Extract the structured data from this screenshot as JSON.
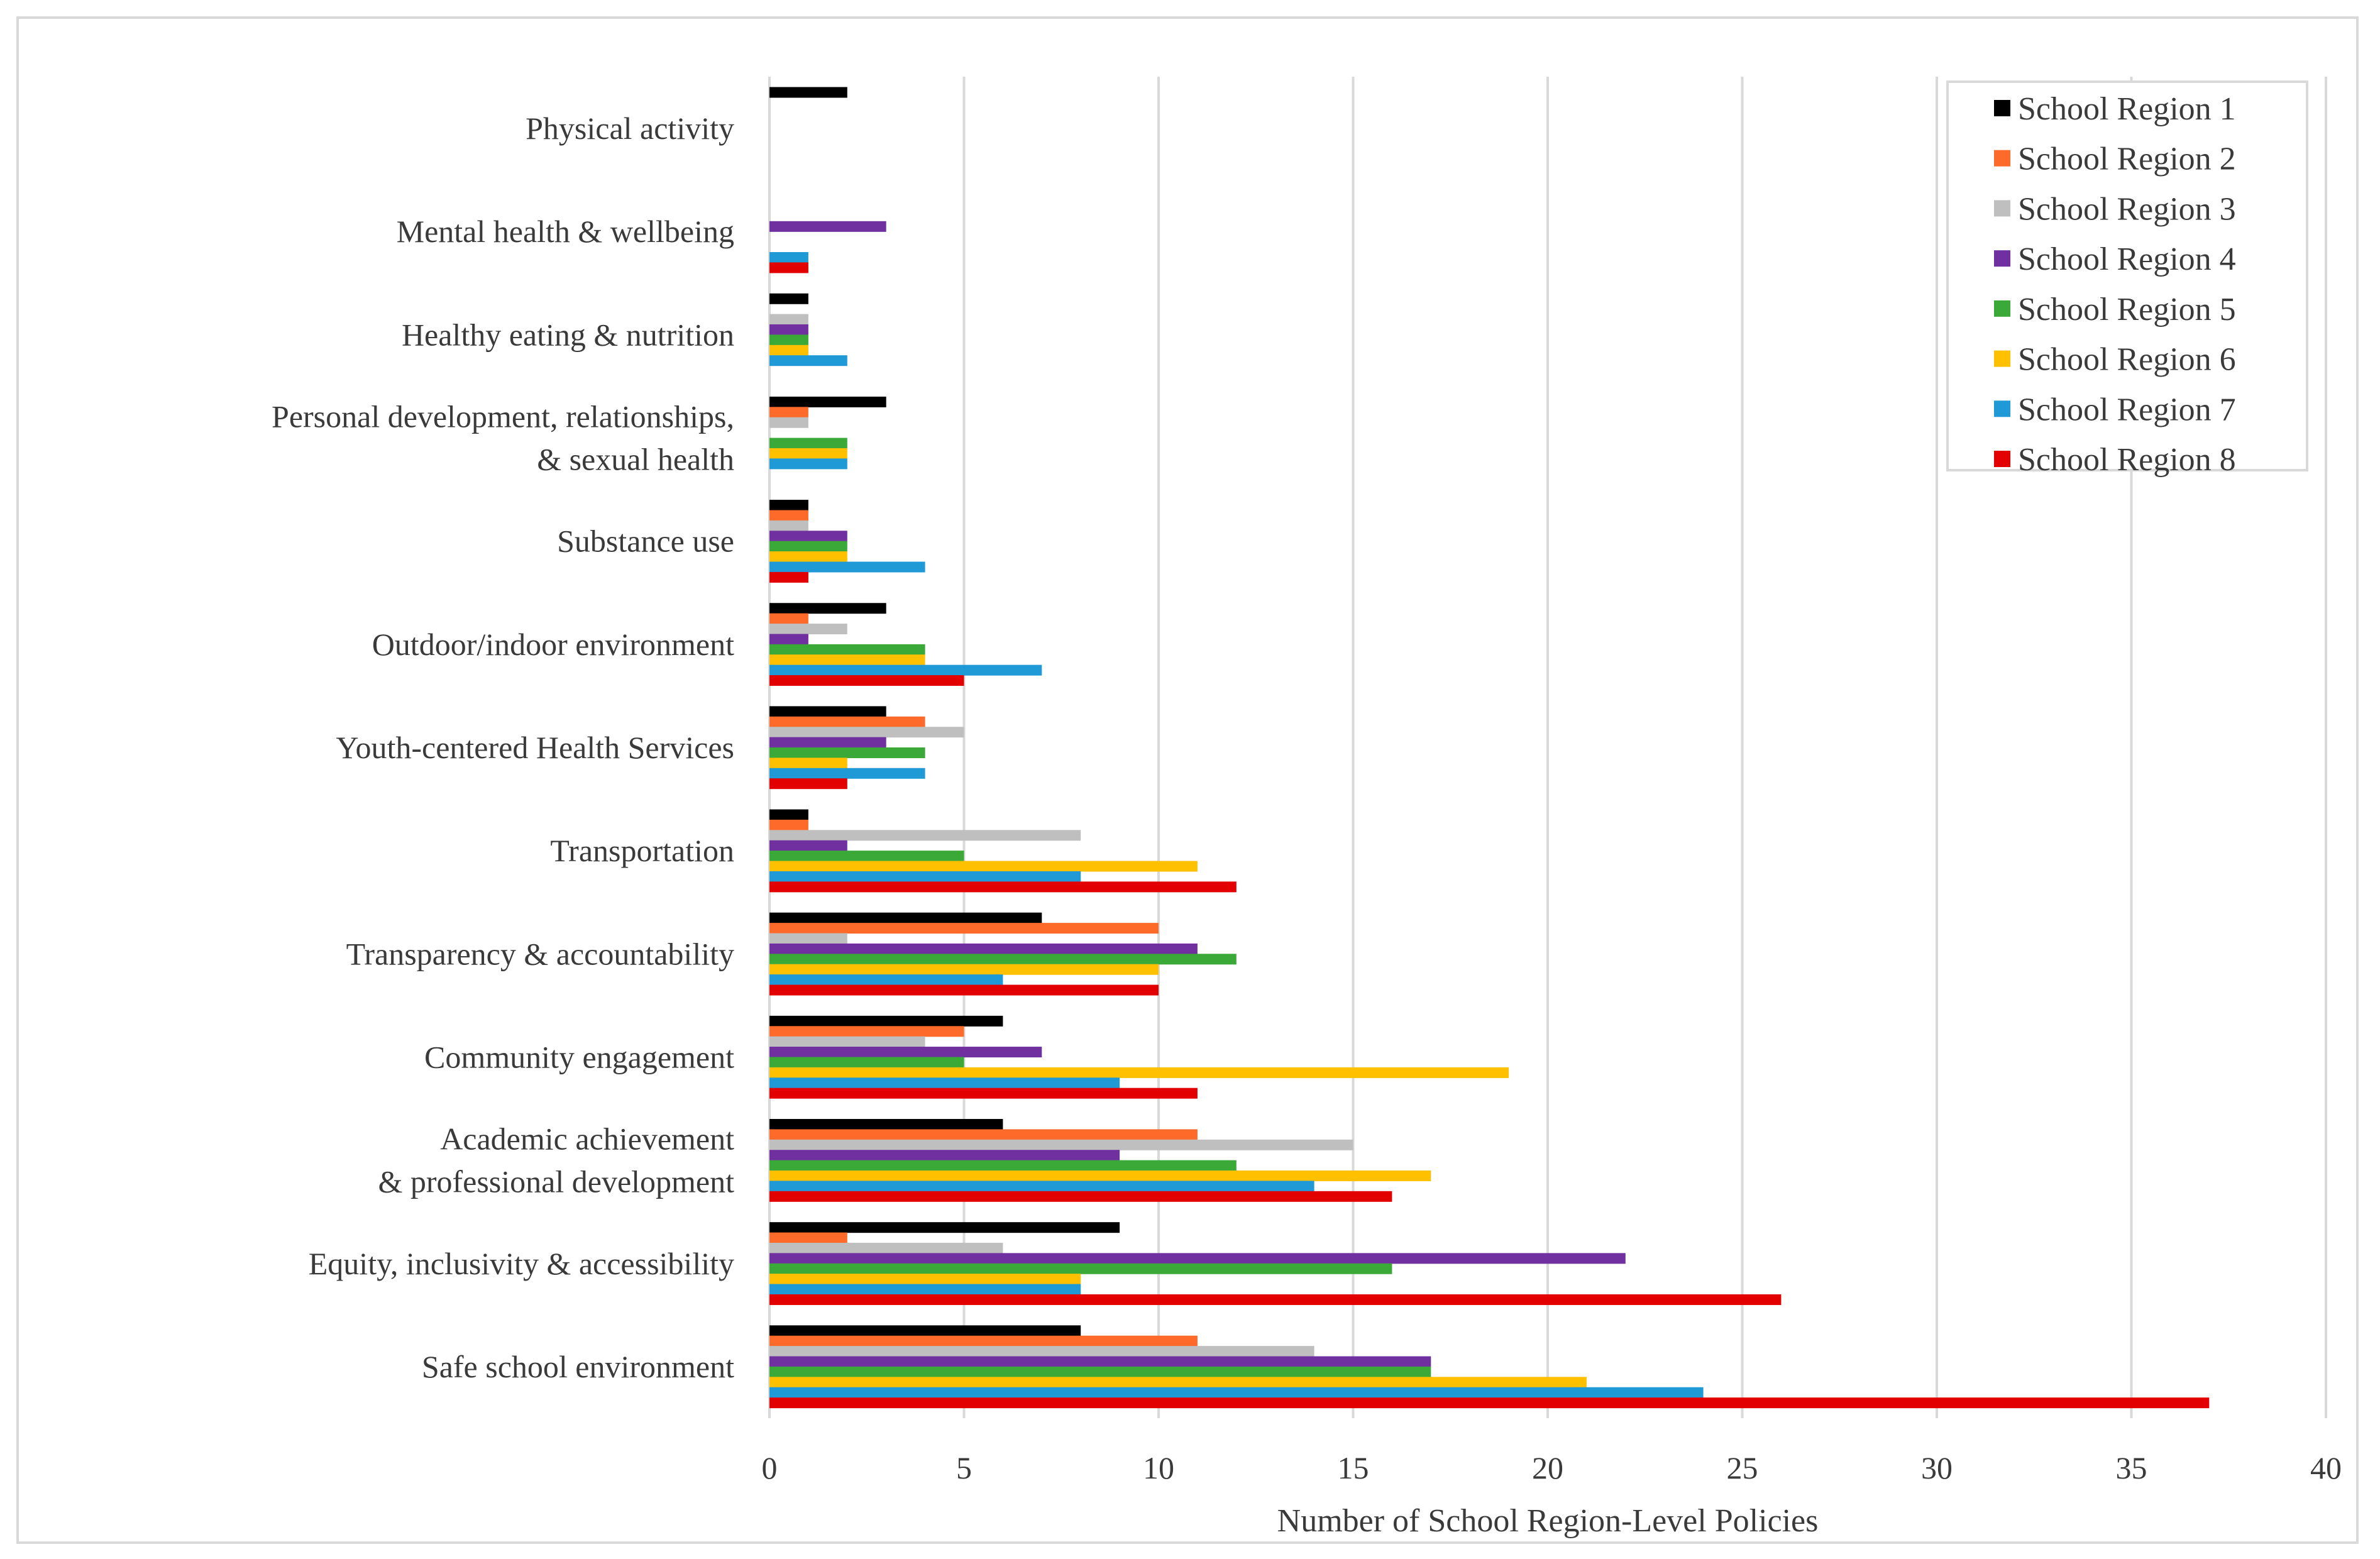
{
  "chart_data": {
    "type": "bar",
    "orientation": "horizontal",
    "title": "",
    "xlabel": "Number of School Region-Level Policies",
    "ylabel": "",
    "xlim": [
      0,
      40
    ],
    "xticks": [
      "0",
      "5",
      "10",
      "15",
      "20",
      "25",
      "30",
      "35",
      "40"
    ],
    "grid": "vertical",
    "legend_position": "top-right",
    "categories": [
      {
        "lines": [
          "Physical activity"
        ]
      },
      {
        "lines": [
          "Mental health & wellbeing"
        ]
      },
      {
        "lines": [
          "Healthy eating & nutrition"
        ]
      },
      {
        "lines": [
          "Personal development, relationships,",
          "& sexual health"
        ]
      },
      {
        "lines": [
          "Substance use"
        ]
      },
      {
        "lines": [
          "Outdoor/indoor environment"
        ]
      },
      {
        "lines": [
          "Youth-centered Health Services"
        ]
      },
      {
        "lines": [
          "Transportation"
        ]
      },
      {
        "lines": [
          "Transparency & accountability"
        ]
      },
      {
        "lines": [
          "Community engagement"
        ]
      },
      {
        "lines": [
          "Academic achievement",
          "& professional development"
        ]
      },
      {
        "lines": [
          "Equity, inclusivity & accessibility"
        ]
      },
      {
        "lines": [
          "Safe school environment"
        ]
      }
    ],
    "series": [
      {
        "name": "School Region 1",
        "color": "#000000",
        "values": [
          2,
          0,
          1,
          3,
          1,
          3,
          3,
          1,
          7,
          6,
          6,
          9,
          8
        ]
      },
      {
        "name": "School Region 2",
        "color": "#fd6a2a",
        "values": [
          0,
          0,
          0,
          1,
          1,
          1,
          4,
          1,
          10,
          5,
          11,
          2,
          11
        ]
      },
      {
        "name": "School Region 3",
        "color": "#bfbfbf",
        "values": [
          0,
          0,
          1,
          1,
          1,
          2,
          5,
          8,
          2,
          4,
          15,
          6,
          14
        ]
      },
      {
        "name": "School Region 4",
        "color": "#7030a0",
        "values": [
          0,
          3,
          1,
          0,
          2,
          1,
          3,
          2,
          11,
          7,
          9,
          22,
          17
        ]
      },
      {
        "name": "School Region 5",
        "color": "#3aa937",
        "values": [
          0,
          0,
          1,
          2,
          2,
          4,
          4,
          5,
          12,
          5,
          12,
          16,
          17
        ]
      },
      {
        "name": "School Region 6",
        "color": "#ffc000",
        "values": [
          0,
          0,
          1,
          2,
          2,
          4,
          2,
          11,
          10,
          19,
          17,
          8,
          21
        ]
      },
      {
        "name": "School Region 7",
        "color": "#1f9ad6",
        "values": [
          0,
          1,
          2,
          2,
          4,
          7,
          4,
          8,
          6,
          9,
          14,
          8,
          24
        ]
      },
      {
        "name": "School Region 8",
        "color": "#e30000",
        "values": [
          0,
          1,
          0,
          0,
          1,
          5,
          2,
          12,
          10,
          11,
          16,
          26,
          37
        ]
      }
    ]
  }
}
